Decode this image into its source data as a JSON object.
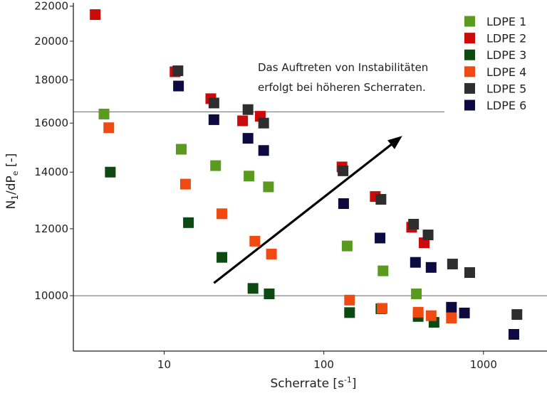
{
  "chart_data": {
    "type": "scatter",
    "xlabel": "Scherrate [s",
    "xlabel_sup": "-1",
    "xlabel_end": "]",
    "ylabel_main": "N",
    "ylabel_sub1": "1",
    "ylabel_mid": "/dP",
    "ylabel_sub2": "e",
    "ylabel_end": " [-]",
    "x_scale": "log",
    "y_scale": "log",
    "xlim": [
      2.7,
      2500
    ],
    "ylim": [
      8600,
      22200
    ],
    "x_ticks": [
      {
        "value": 10,
        "label": "10"
      },
      {
        "value": 100,
        "label": "100"
      },
      {
        "value": 1000,
        "label": "1000"
      }
    ],
    "y_ticks": [
      {
        "value": 10000,
        "label": "10000"
      },
      {
        "value": 12000,
        "label": "12000"
      },
      {
        "value": 14000,
        "label": "14000"
      },
      {
        "value": 16000,
        "label": "16000"
      },
      {
        "value": 18000,
        "label": "18000"
      },
      {
        "value": 20000,
        "label": "20000"
      },
      {
        "value": 22000,
        "label": "22000"
      }
    ],
    "reference_lines_y": [
      10000,
      16500
    ],
    "legend_position": "top-right",
    "annotation": {
      "line1": "Das Auftreten von Instabilitäten",
      "line2": "erfolgt bei höheren Scherraten.",
      "arrow_from": [
        20.5,
        10350
      ],
      "arrow_to": [
        310,
        15450
      ]
    },
    "series": [
      {
        "name": "LDPE 1",
        "color": "#5a9a1e",
        "points": [
          [
            4.2,
            16400
          ],
          [
            12.8,
            14900
          ],
          [
            21,
            14250
          ],
          [
            34,
            13850
          ],
          [
            45,
            13450
          ],
          [
            140,
            11450
          ],
          [
            235,
            10700
          ],
          [
            380,
            10050
          ]
        ]
      },
      {
        "name": "LDPE 2",
        "color": "#cc0a0a",
        "points": [
          [
            3.7,
            21500
          ],
          [
            11.7,
            18400
          ],
          [
            19.6,
            17100
          ],
          [
            31,
            16100
          ],
          [
            40,
            16300
          ],
          [
            130,
            14200
          ],
          [
            210,
            13100
          ],
          [
            355,
            12050
          ],
          [
            425,
            11550
          ]
        ]
      },
      {
        "name": "LDPE 3",
        "color": "#0c4a12",
        "points": [
          [
            4.6,
            14000
          ],
          [
            14.2,
            12200
          ],
          [
            23,
            11100
          ],
          [
            36,
            10200
          ],
          [
            45.5,
            10050
          ],
          [
            145,
            9550
          ],
          [
            228,
            9650
          ],
          [
            390,
            9450
          ],
          [
            490,
            9300
          ]
        ]
      },
      {
        "name": "LDPE 4",
        "color": "#ee4a12",
        "points": [
          [
            4.5,
            15800
          ],
          [
            13.6,
            13550
          ],
          [
            23,
            12500
          ],
          [
            37,
            11600
          ],
          [
            47,
            11200
          ],
          [
            145,
            9880
          ],
          [
            232,
            9660
          ],
          [
            390,
            9560
          ],
          [
            470,
            9470
          ],
          [
            630,
            9410
          ]
        ]
      },
      {
        "name": "LDPE 5",
        "color": "#2e2e2e",
        "points": [
          [
            12.2,
            18450
          ],
          [
            20.5,
            16900
          ],
          [
            33.5,
            16600
          ],
          [
            42,
            16000
          ],
          [
            132,
            14050
          ],
          [
            228,
            13000
          ],
          [
            365,
            12150
          ],
          [
            450,
            11800
          ],
          [
            640,
            10900
          ],
          [
            820,
            10650
          ],
          [
            1620,
            9500
          ]
        ]
      },
      {
        "name": "LDPE 6",
        "color": "#0c0a40",
        "points": [
          [
            12.3,
            17700
          ],
          [
            20.5,
            16150
          ],
          [
            33.5,
            15350
          ],
          [
            42,
            14850
          ],
          [
            133,
            12850
          ],
          [
            225,
            11700
          ],
          [
            375,
            10950
          ],
          [
            470,
            10800
          ],
          [
            630,
            9690
          ],
          [
            760,
            9540
          ],
          [
            1550,
            9000
          ]
        ]
      }
    ]
  }
}
